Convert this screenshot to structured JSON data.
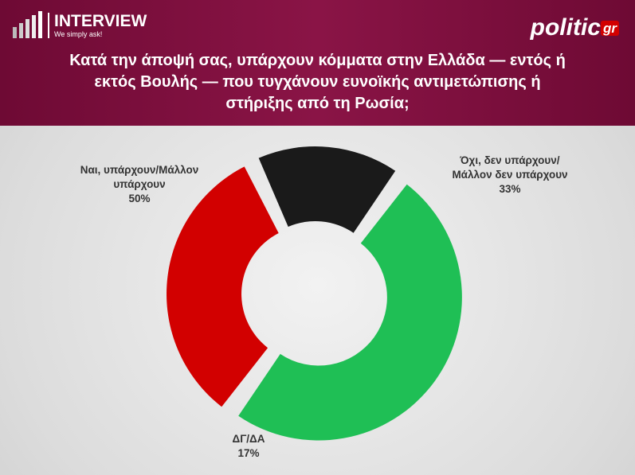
{
  "header": {
    "brand": "INTERVIEW",
    "tagline": "We simply ask!",
    "site": "politic",
    "site_suffix": "gr"
  },
  "chart_data": {
    "type": "pie",
    "donut": true,
    "title": "Κατά την άποψή σας, υπάρχουν κόμματα στην Ελλάδα — εντός ή εκτός Βουλής — που τυγχάνουν ευνοϊκής αντιμετώπισης ή στήριξης από τη Ρωσία;",
    "categories": [
      "Ναι, υπάρχουν/Μάλλον υπάρχουν",
      "Όχι, δεν υπάρχουν/Μάλλον δεν υπάρχουν",
      "ΔΓ/ΔΑ"
    ],
    "values": [
      50,
      33,
      17
    ],
    "value_labels": [
      "50%",
      "33%",
      "17%"
    ],
    "colors": [
      "#1fbf55",
      "#d20000",
      "#1a1a1a"
    ]
  }
}
